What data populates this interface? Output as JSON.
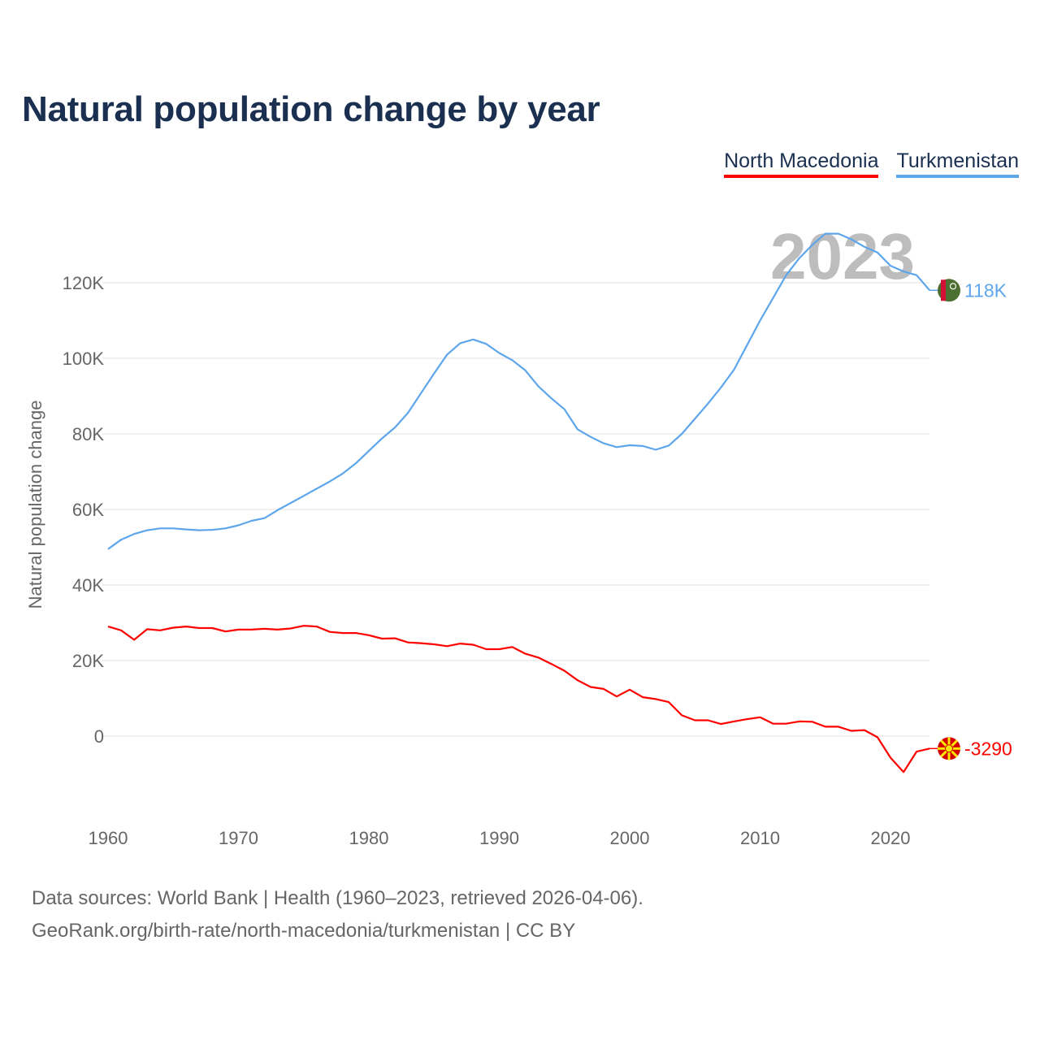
{
  "title": "Natural population change by year",
  "footer": {
    "line1": "Data sources: World Bank | Health (1960–2023, retrieved 2026-04-06).",
    "line2": "GeoRank.org/birth-rate/north-macedonia/turkmenistan | CC BY"
  },
  "chart_data": {
    "type": "line",
    "title": "Natural population change by year",
    "xlabel": "",
    "ylabel": "Natural population change",
    "watermark_year": "2023",
    "xlim": [
      1960,
      2023
    ],
    "ylim": [
      -20000,
      140000
    ],
    "x_ticks": [
      1960,
      1970,
      1980,
      1990,
      2000,
      2010,
      2020
    ],
    "x_tick_labels": [
      "1960",
      "1970",
      "1980",
      "1990",
      "2000",
      "2010",
      "2020"
    ],
    "y_ticks": [
      0,
      20000,
      40000,
      60000,
      80000,
      100000,
      120000
    ],
    "y_tick_labels": [
      "0",
      "20K",
      "40K",
      "60K",
      "80K",
      "100K",
      "120K"
    ],
    "grid": true,
    "legend_position": "top-right",
    "x": [
      1960,
      1961,
      1962,
      1963,
      1964,
      1965,
      1966,
      1967,
      1968,
      1969,
      1970,
      1971,
      1972,
      1973,
      1974,
      1975,
      1976,
      1977,
      1978,
      1979,
      1980,
      1981,
      1982,
      1983,
      1984,
      1985,
      1986,
      1987,
      1988,
      1989,
      1990,
      1991,
      1992,
      1993,
      1994,
      1995,
      1996,
      1997,
      1998,
      1999,
      2000,
      2001,
      2002,
      2003,
      2004,
      2005,
      2006,
      2007,
      2008,
      2009,
      2010,
      2011,
      2012,
      2013,
      2014,
      2015,
      2016,
      2017,
      2018,
      2019,
      2020,
      2021,
      2022,
      2023
    ],
    "series": [
      {
        "name": "North Macedonia",
        "color": "#ff0000",
        "end_label": "-3290",
        "values": [
          29000,
          28000,
          25500,
          28300,
          28000,
          28700,
          29000,
          28600,
          28600,
          27700,
          28200,
          28200,
          28400,
          28200,
          28500,
          29200,
          29000,
          27600,
          27300,
          27300,
          26700,
          25800,
          25900,
          24800,
          24600,
          24300,
          23800,
          24500,
          24200,
          23000,
          23000,
          23600,
          21800,
          20800,
          19100,
          17300,
          14800,
          13000,
          12500,
          10500,
          12300,
          10300,
          9800,
          9000,
          5500,
          4200,
          4200,
          3200,
          3900,
          4500,
          5000,
          3300,
          3300,
          3900,
          3800,
          2500,
          2500,
          1400,
          1600,
          -300,
          -5700,
          -9500,
          -4100,
          -3290
        ]
      },
      {
        "name": "Turkmenistan",
        "color": "#5ea6ec",
        "end_label": "118K",
        "values": [
          49500,
          52000,
          53500,
          54500,
          55000,
          55000,
          54700,
          54500,
          54600,
          55000,
          55800,
          57000,
          57700,
          59800,
          61700,
          63600,
          65500,
          67400,
          69500,
          72200,
          75500,
          78800,
          81700,
          85600,
          90800,
          96000,
          101000,
          104000,
          105000,
          103800,
          101400,
          99500,
          96800,
          92600,
          89400,
          86500,
          81200,
          79200,
          77500,
          76500,
          77000,
          76800,
          75800,
          76900,
          80000,
          84000,
          88000,
          92300,
          97000,
          103500,
          110000,
          116000,
          122000,
          126500,
          130000,
          133000,
          133000,
          131500,
          129500,
          128000,
          124500,
          123000,
          122000,
          118000
        ]
      }
    ]
  }
}
